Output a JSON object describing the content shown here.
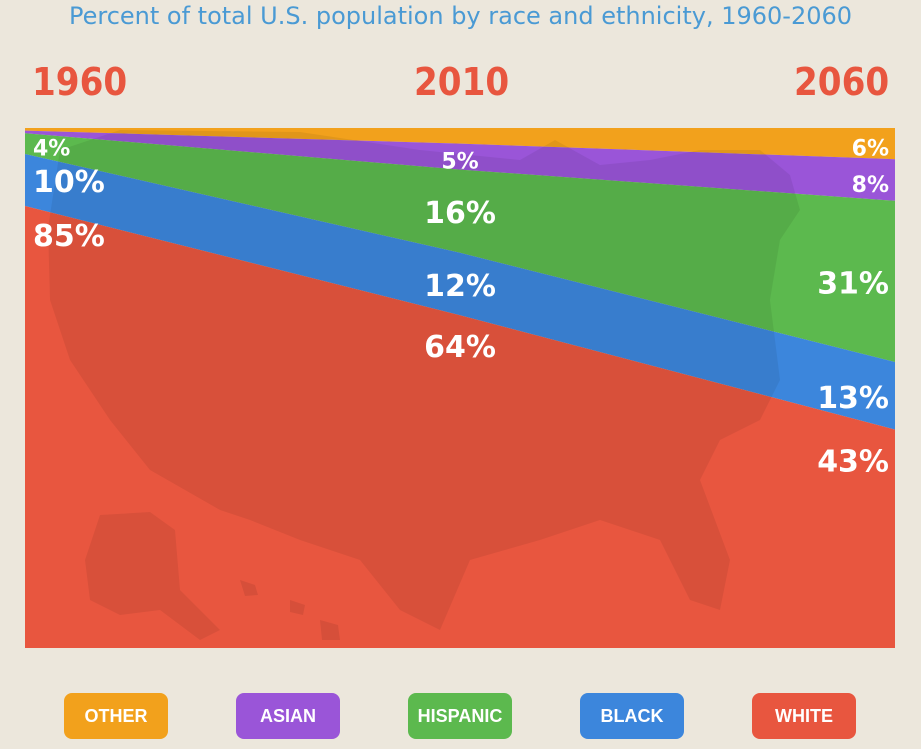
{
  "title": "Percent of total U.S. population by race and ethnicity, 1960-2060",
  "colors": {
    "Other": "#f2a11c",
    "Asian": "#9a55d8",
    "Hispanic": "#5cb94e",
    "Black": "#3c86dc",
    "White": "#e8563f",
    "background": "#ece7dc",
    "map_white": "#c73a26",
    "map_black": "#2e6fc4",
    "map_hispanic": "#4aa53d"
  },
  "legend": [
    "OTHER",
    "ASIAN",
    "HISPANIC",
    "BLACK",
    "WHITE"
  ],
  "chart_data": {
    "type": "area",
    "stacked": true,
    "x": [
      1960,
      2010,
      2060
    ],
    "x_labels": [
      "1960",
      "2010",
      "2060"
    ],
    "ylim": [
      0,
      100
    ],
    "series": [
      {
        "name": "Other",
        "values": [
          0.5,
          3,
          6
        ],
        "labels": [
          "",
          "",
          "6%"
        ]
      },
      {
        "name": "Asian",
        "values": [
          0.5,
          5,
          8
        ],
        "labels": [
          "",
          "5%",
          "8%"
        ]
      },
      {
        "name": "Hispanic",
        "values": [
          4,
          16,
          31
        ],
        "labels": [
          "4%",
          "16%",
          "31%"
        ]
      },
      {
        "name": "Black",
        "values": [
          10,
          12,
          13
        ],
        "labels": [
          "10%",
          "12%",
          "13%"
        ]
      },
      {
        "name": "White",
        "values": [
          85,
          64,
          43
        ],
        "labels": [
          "85%",
          "64%",
          "43%"
        ]
      }
    ]
  }
}
